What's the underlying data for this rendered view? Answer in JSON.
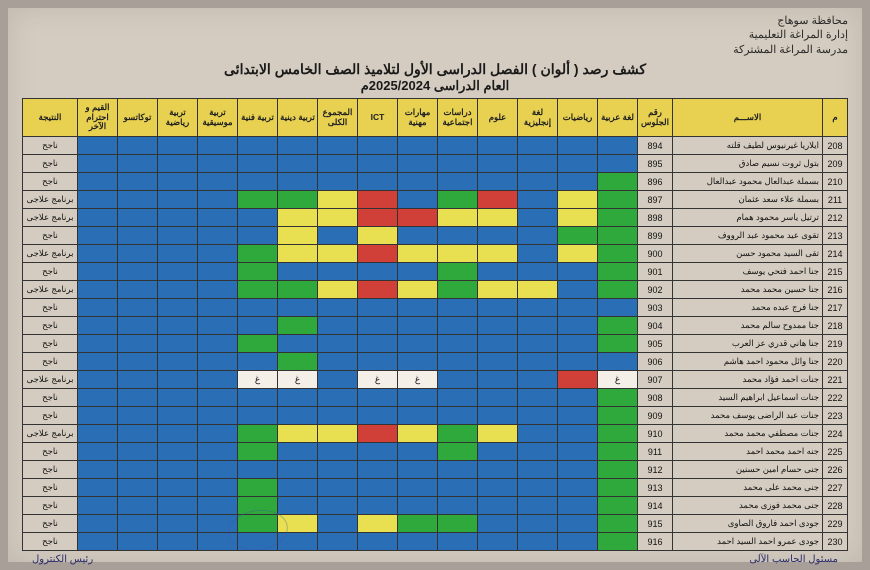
{
  "header": {
    "line1": "محافظة سوهاج",
    "line2": "إدارة المراغة التعليمية",
    "line3": "مدرسة المراغة المشتركة"
  },
  "title": {
    "main": "كشف رصد ( ألوان ) الفصل الدراسى الأول لتلاميذ الصف الخامس الابتدائى",
    "year": "العام الدراسى 2025/2024م"
  },
  "columns": [
    "م",
    "الاســـم",
    "رقم الجلوس",
    "لغة عربية",
    "رياضيات",
    "لغة إنجليزية",
    "علوم",
    "دراسات اجتماعية",
    "مهارات مهنية",
    "ICT",
    "المجموع الكلى",
    "تربية دينية",
    "تربية فنية",
    "تربية موسيقية",
    "تربية رياضية",
    "توكاتسو",
    "القيم و احترام الآخر",
    "النتيجة"
  ],
  "result_labels": {
    "pass": "ناجح",
    "remed": "برنامج علاجى"
  },
  "abs": "غ",
  "rows": [
    {
      "n": 208,
      "name": "ايلاريا غيرنيوس لطيف قلته",
      "seat": 894,
      "c": [
        "b",
        "b",
        "b",
        "b",
        "b",
        "b",
        "b",
        "b",
        "b",
        "b",
        "b",
        "b",
        "b",
        "b"
      ],
      "res": "pass"
    },
    {
      "n": 209,
      "name": "بتول ثروت نسيم صادق",
      "seat": 895,
      "c": [
        "b",
        "b",
        "b",
        "b",
        "b",
        "b",
        "b",
        "b",
        "b",
        "b",
        "b",
        "b",
        "b",
        "b"
      ],
      "res": "pass"
    },
    {
      "n": 210,
      "name": "بسملة عبدالعال محمود عبدالعال",
      "seat": 896,
      "c": [
        "g",
        "b",
        "b",
        "b",
        "b",
        "b",
        "b",
        "b",
        "b",
        "b",
        "b",
        "b",
        "b",
        "b"
      ],
      "res": "pass"
    },
    {
      "n": 211,
      "name": "بسملة علاء سعد عثمان",
      "seat": 897,
      "c": [
        "g",
        "y",
        "b",
        "r",
        "g",
        "b",
        "r",
        "y",
        "g",
        "g",
        "b",
        "b",
        "b",
        "b"
      ],
      "res": "remed"
    },
    {
      "n": 212,
      "name": "ترتيل ياسر محمود همام",
      "seat": 898,
      "c": [
        "g",
        "y",
        "b",
        "y",
        "y",
        "r",
        "r",
        "y",
        "y",
        "b",
        "b",
        "b",
        "b",
        "b"
      ],
      "res": "remed"
    },
    {
      "n": 213,
      "name": "تقوى عيد محمود عبد الرووف",
      "seat": 899,
      "c": [
        "g",
        "g",
        "b",
        "b",
        "b",
        "b",
        "y",
        "b",
        "y",
        "b",
        "b",
        "b",
        "b",
        "b"
      ],
      "res": "pass"
    },
    {
      "n": 214,
      "name": "تقى السيد محمود حسن",
      "seat": 900,
      "c": [
        "g",
        "y",
        "b",
        "y",
        "y",
        "y",
        "r",
        "y",
        "y",
        "g",
        "b",
        "b",
        "b",
        "b"
      ],
      "res": "remed"
    },
    {
      "n": 215,
      "name": "جنا احمد فتحي يوسف",
      "seat": 901,
      "c": [
        "g",
        "b",
        "b",
        "b",
        "g",
        "b",
        "b",
        "b",
        "b",
        "g",
        "b",
        "b",
        "b",
        "b"
      ],
      "res": "pass"
    },
    {
      "n": 216,
      "name": "جنا حسين محمد محمد",
      "seat": 902,
      "c": [
        "g",
        "b",
        "y",
        "y",
        "g",
        "y",
        "r",
        "y",
        "g",
        "g",
        "b",
        "b",
        "b",
        "b"
      ],
      "res": "remed"
    },
    {
      "n": 217,
      "name": "جنا فرج عبده محمد",
      "seat": 903,
      "c": [
        "b",
        "b",
        "b",
        "b",
        "b",
        "b",
        "b",
        "b",
        "b",
        "b",
        "b",
        "b",
        "b",
        "b"
      ],
      "res": "pass"
    },
    {
      "n": 218,
      "name": "جنا ممدوح سالم محمد",
      "seat": 904,
      "c": [
        "g",
        "b",
        "b",
        "b",
        "b",
        "b",
        "b",
        "b",
        "g",
        "b",
        "b",
        "b",
        "b",
        "b"
      ],
      "res": "pass"
    },
    {
      "n": 219,
      "name": "جنا هاني قدري عز العرب",
      "seat": 905,
      "c": [
        "g",
        "b",
        "b",
        "b",
        "b",
        "b",
        "b",
        "b",
        "b",
        "g",
        "b",
        "b",
        "b",
        "b"
      ],
      "res": "pass"
    },
    {
      "n": 220,
      "name": "جنا وائل محمود احمد هاشم",
      "seat": 906,
      "c": [
        "b",
        "b",
        "b",
        "b",
        "b",
        "b",
        "b",
        "b",
        "g",
        "b",
        "b",
        "b",
        "b",
        "b"
      ],
      "res": "pass"
    },
    {
      "n": 221,
      "name": "جنات احمد فؤاد محمد",
      "seat": 907,
      "c": [
        "wA",
        "r",
        "b",
        "b",
        "b",
        "wA",
        "wA",
        "b",
        "wA",
        "wA",
        "b",
        "b",
        "b",
        "b"
      ],
      "res": "remed"
    },
    {
      "n": 222,
      "name": "جنات اسماعيل ابراهيم السيد",
      "seat": 908,
      "c": [
        "g",
        "b",
        "b",
        "b",
        "b",
        "b",
        "b",
        "b",
        "b",
        "b",
        "b",
        "b",
        "b",
        "b"
      ],
      "res": "pass"
    },
    {
      "n": 223,
      "name": "جنات عبد الراضى يوسف محمد",
      "seat": 909,
      "c": [
        "g",
        "b",
        "b",
        "b",
        "b",
        "b",
        "b",
        "b",
        "b",
        "b",
        "b",
        "b",
        "b",
        "b"
      ],
      "res": "pass"
    },
    {
      "n": 224,
      "name": "جنات مصطفي محمد محمد",
      "seat": 910,
      "c": [
        "g",
        "b",
        "b",
        "y",
        "g",
        "y",
        "r",
        "y",
        "y",
        "g",
        "b",
        "b",
        "b",
        "b"
      ],
      "res": "remed"
    },
    {
      "n": 225,
      "name": "جنه احمد محمد احمد",
      "seat": 911,
      "c": [
        "g",
        "b",
        "b",
        "b",
        "g",
        "b",
        "b",
        "b",
        "b",
        "g",
        "b",
        "b",
        "b",
        "b"
      ],
      "res": "pass"
    },
    {
      "n": 226,
      "name": "جنى حسام امين حسنين",
      "seat": 912,
      "c": [
        "g",
        "b",
        "b",
        "b",
        "b",
        "b",
        "b",
        "b",
        "b",
        "b",
        "b",
        "b",
        "b",
        "b"
      ],
      "res": "pass"
    },
    {
      "n": 227,
      "name": "جنى محمد على محمد",
      "seat": 913,
      "c": [
        "g",
        "b",
        "b",
        "b",
        "b",
        "b",
        "b",
        "b",
        "b",
        "g",
        "b",
        "b",
        "b",
        "b"
      ],
      "res": "pass"
    },
    {
      "n": 228,
      "name": "جنى محمد فوزى محمد",
      "seat": 914,
      "c": [
        "g",
        "b",
        "b",
        "b",
        "b",
        "b",
        "b",
        "b",
        "b",
        "g",
        "b",
        "b",
        "b",
        "b"
      ],
      "res": "pass"
    },
    {
      "n": 229,
      "name": "جودى احمد فاروق الصاوى",
      "seat": 915,
      "c": [
        "g",
        "b",
        "b",
        "b",
        "g",
        "g",
        "y",
        "b",
        "y",
        "g",
        "b",
        "b",
        "b",
        "b"
      ],
      "res": "pass"
    },
    {
      "n": 230,
      "name": "جودى عمرو احمد السيد احمد",
      "seat": 916,
      "c": [
        "g",
        "b",
        "b",
        "b",
        "b",
        "b",
        "b",
        "b",
        "b",
        "b",
        "b",
        "b",
        "b",
        "b"
      ],
      "res": "pass"
    }
  ],
  "footer": {
    "right": "مسئول الحاسب الآلى",
    "left": "رئيس الكنترول"
  }
}
